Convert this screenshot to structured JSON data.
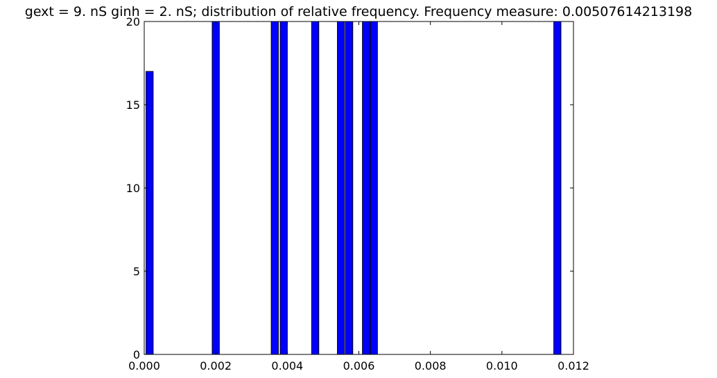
{
  "chart_data": {
    "type": "bar",
    "title": "gext = 9. nS ginh = 2. nS; distribution of relative frequency. Frequency measure: 0.00507614213198",
    "xlabel": "",
    "ylabel": "",
    "xlim": [
      0.0,
      0.012
    ],
    "ylim": [
      0,
      20
    ],
    "grid": false,
    "bar_width": 0.0002,
    "series": [
      {
        "color": "#0000ff",
        "bars": [
          {
            "x": 5e-05,
            "value": 17
          },
          {
            "x": 0.0019,
            "value": 20
          },
          {
            "x": 0.00355,
            "value": 20
          },
          {
            "x": 0.0038,
            "value": 20
          },
          {
            "x": 0.00468,
            "value": 20
          },
          {
            "x": 0.0054,
            "value": 20
          },
          {
            "x": 0.00563,
            "value": 20
          },
          {
            "x": 0.0061,
            "value": 20
          },
          {
            "x": 0.00632,
            "value": 20
          },
          {
            "x": 0.01145,
            "value": 20
          }
        ]
      }
    ],
    "x_ticks": [
      {
        "value": 0.0,
        "label": "0.000"
      },
      {
        "value": 0.002,
        "label": "0.002"
      },
      {
        "value": 0.004,
        "label": "0.004"
      },
      {
        "value": 0.006,
        "label": "0.006"
      },
      {
        "value": 0.008,
        "label": "0.008"
      },
      {
        "value": 0.01,
        "label": "0.010"
      },
      {
        "value": 0.012,
        "label": "0.012"
      }
    ],
    "y_ticks": [
      {
        "value": 0,
        "label": "0"
      },
      {
        "value": 5,
        "label": "5"
      },
      {
        "value": 10,
        "label": "10"
      },
      {
        "value": 15,
        "label": "15"
      },
      {
        "value": 20,
        "label": "20"
      }
    ]
  }
}
